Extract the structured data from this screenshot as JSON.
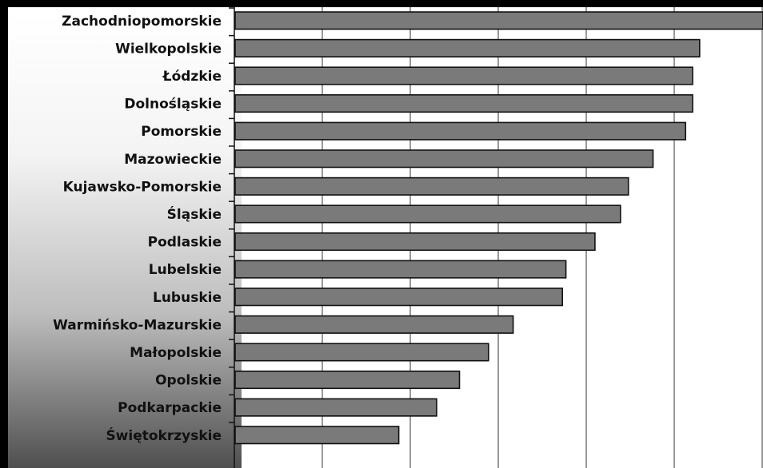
{
  "chart_data": {
    "type": "bar",
    "orientation": "horizontal",
    "categories": [
      "Zachodniopomorskie",
      "Wielkopolskie",
      "Łódzkie",
      "Dolnośląskie",
      "Pomorskie",
      "Mazowieckie",
      "Kujawsko-Pomorskie",
      "Śląskie",
      "Podlaskie",
      "Lubelskie",
      "Lubuskie",
      "Warmińsko-Mazurskie",
      "Małopolskie",
      "Opolskie",
      "Podkarpackie",
      "Świętokrzyskie"
    ],
    "values": [
      6.0,
      5.28,
      5.2,
      5.2,
      5.12,
      4.75,
      4.47,
      4.38,
      4.09,
      3.76,
      3.72,
      3.16,
      2.88,
      2.55,
      2.29,
      1.86
    ],
    "xlim": [
      0,
      6
    ],
    "grid": true,
    "bar_color": "#7a7a7a"
  }
}
